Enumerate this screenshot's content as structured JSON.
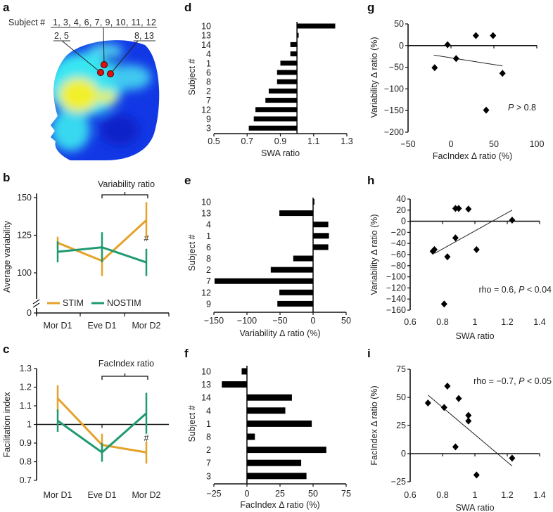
{
  "panel_a": {
    "label": "a",
    "subject_prefix": "Subject #",
    "group_center": "1, 3, 4, 6, 7, 9, 10, 11, 12",
    "group_left": "2, 5",
    "group_right": "8, 13",
    "colors": {
      "electrode": "#e01010",
      "scalp_low": "#1030e0",
      "scalp_mid": "#30e0f0",
      "scalp_high": "#f5f020"
    }
  },
  "colors": {
    "STIM": "#E5A22A",
    "NOSTIM": "#1F9A70",
    "bars": "#000000"
  },
  "chart_data": [
    {
      "panel": "b",
      "type": "line",
      "categories": [
        "Mor D1",
        "Eve D1",
        "Mor D2"
      ],
      "series": [
        {
          "name": "STIM",
          "values": [
            120,
            108,
            135
          ],
          "errors": [
            4,
            10,
            12
          ]
        },
        {
          "name": "NOSTIM",
          "values": [
            114,
            117,
            107
          ],
          "errors": [
            7,
            10,
            9
          ]
        }
      ],
      "ylabel": "Average variability",
      "yticks": [
        "0",
        "100",
        "125",
        "150"
      ],
      "ylim": [
        90,
        150
      ],
      "axis_break": true,
      "bracket_label": "Variability ratio",
      "marker": "#",
      "legend": "bottom-left"
    },
    {
      "panel": "c",
      "type": "line",
      "categories": [
        "Mor D1",
        "Eve D1",
        "Mor D2"
      ],
      "series": [
        {
          "name": "STIM",
          "values": [
            1.14,
            0.89,
            0.85
          ],
          "errors": [
            0.07,
            0.06,
            0.06
          ]
        },
        {
          "name": "NOSTIM",
          "values": [
            1.02,
            0.85,
            1.06
          ],
          "errors": [
            0.06,
            0.05,
            0.11
          ]
        }
      ],
      "ylabel": "Facilitation index",
      "yticks": [
        "0.7",
        "0.8",
        "0.9",
        "1",
        "1.1",
        "1.2",
        "1.3"
      ],
      "ylim": [
        0.7,
        1.3
      ],
      "baseline": 1,
      "bracket_label": "FacIndex ratio",
      "marker": "#"
    },
    {
      "panel": "d",
      "type": "bar",
      "orientation": "horizontal",
      "categories": [
        "10",
        "13",
        "14",
        "4",
        "1",
        "6",
        "8",
        "2",
        "7",
        "12",
        "9",
        "3"
      ],
      "values": [
        1.23,
        1.01,
        0.96,
        0.96,
        0.9,
        0.88,
        0.88,
        0.83,
        0.81,
        0.75,
        0.74,
        0.71
      ],
      "baseline": 1.0,
      "xlim": [
        0.5,
        1.3
      ],
      "xticks": [
        "0.5",
        "0.7",
        "0.9",
        "1.1",
        "1.3"
      ],
      "xlabel": "SWA ratio",
      "ylabel": "Subject #"
    },
    {
      "panel": "e",
      "type": "bar",
      "orientation": "horizontal",
      "categories": [
        "10",
        "13",
        "4",
        "1",
        "6",
        "8",
        "2",
        "7",
        "12",
        "9"
      ],
      "values": [
        2,
        -51,
        23,
        24,
        23,
        -30,
        -64,
        -149,
        -51,
        -54
      ],
      "baseline": 0,
      "xlim": [
        -150,
        50
      ],
      "xticks": [
        "−150",
        "−100",
        "−50",
        "0",
        "50"
      ],
      "xlabel": "Variability Δ ratio (%)",
      "ylabel": "Subject #"
    },
    {
      "panel": "f",
      "type": "bar",
      "orientation": "horizontal",
      "categories": [
        "10",
        "13",
        "14",
        "4",
        "1",
        "8",
        "2",
        "7",
        "3"
      ],
      "values": [
        -4,
        -19,
        34,
        29,
        49,
        6,
        60,
        41,
        45
      ],
      "baseline": 0,
      "xlim": [
        -25,
        75
      ],
      "xticks": [
        "−25",
        "0",
        "25",
        "50",
        "75"
      ],
      "xlabel": "FacIndex Δ ratio (%)",
      "ylabel": "Subject #"
    },
    {
      "panel": "g",
      "type": "scatter",
      "x": [
        -4,
        29,
        49,
        -19,
        6,
        60,
        41
      ],
      "y": [
        2,
        23,
        23,
        -51,
        -30,
        -64,
        -149
      ],
      "fit_line": [
        [
          -20,
          -22
        ],
        [
          60,
          -47
        ]
      ],
      "xlim": [
        -50,
        100
      ],
      "ylim": [
        -200,
        50
      ],
      "xticks": [
        "−50",
        "0",
        "50",
        "100"
      ],
      "yticks": [
        "−200",
        "−150",
        "−100",
        "−50",
        "0",
        "50"
      ],
      "xlabel": "FacIndex Δ ratio (%)",
      "ylabel": "Variability Δ ratio (%)",
      "annotation": "P > 0.8"
    },
    {
      "panel": "h",
      "type": "scatter",
      "x": [
        0.88,
        0.9,
        0.96,
        1.23,
        0.88,
        0.74,
        0.75,
        0.83,
        1.01,
        0.81
      ],
      "y": [
        23,
        23,
        22,
        2,
        -30,
        -54,
        -51,
        -64,
        -51,
        -149
      ],
      "fit_line": [
        [
          0.75,
          -58
        ],
        [
          1.23,
          20
        ]
      ],
      "xlim": [
        0.6,
        1.4
      ],
      "ylim": [
        -160,
        40
      ],
      "xticks": [
        "0.6",
        "0.8",
        "1",
        "1.2",
        "1.4"
      ],
      "yticks": [
        "−160",
        "−140",
        "−120",
        "−100",
        "−80",
        "−60",
        "−40",
        "−20",
        "0",
        "20",
        "40"
      ],
      "xlabel": "SWA ratio",
      "ylabel": "Variability Δ ratio (%)",
      "annotation": "rho = 0.6, P < 0.04"
    },
    {
      "panel": "i",
      "type": "scatter",
      "x": [
        0.71,
        0.81,
        0.83,
        0.9,
        0.96,
        0.96,
        0.88,
        1.01,
        1.23
      ],
      "y": [
        45,
        41,
        60,
        49,
        34,
        29,
        6,
        -19,
        -4
      ],
      "fit_line": [
        [
          0.71,
          52
        ],
        [
          1.23,
          -11
        ]
      ],
      "xlim": [
        0.6,
        1.4
      ],
      "ylim": [
        -25,
        75
      ],
      "xticks": [
        "0.6",
        "0.8",
        "1",
        "1.2",
        "1.4"
      ],
      "yticks": [
        "−25",
        "0",
        "25",
        "50",
        "75"
      ],
      "xlabel": "SWA ratio",
      "ylabel": "FacIndex Δ ratio (%)",
      "annotation": "rho = −0.7, P < 0.05"
    }
  ]
}
